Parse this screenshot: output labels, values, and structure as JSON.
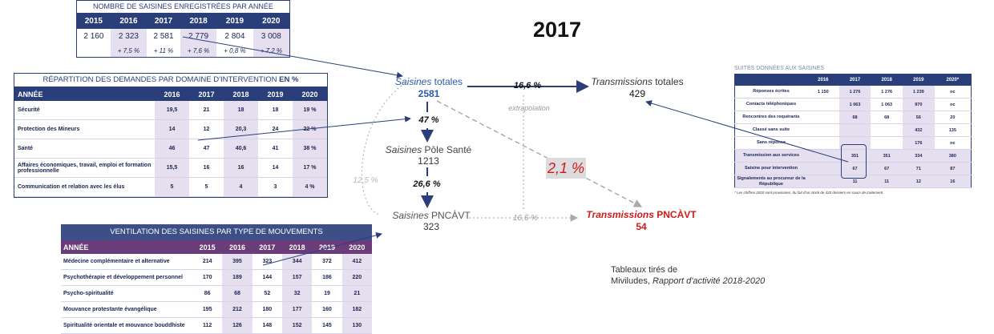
{
  "year": "2017",
  "table_counts": {
    "title": "NOMBRE DE SAISINES ENREGISTRÉES PAR ANNÉE",
    "headers": [
      "2015",
      "2016",
      "2017",
      "2018",
      "2019",
      "2020"
    ],
    "values": [
      "2 160",
      "2 323",
      "2 581",
      "2 779",
      "2 804",
      "3 008"
    ],
    "pcts": [
      "",
      "+ 7,5 %",
      "+ 11 %",
      "+ 7,6 %",
      "+ 0,8 %",
      "+ 7,2 %"
    ]
  },
  "table_domains": {
    "title_main": "RÉPARTITION DES DEMANDES PAR DOMAINE D'INTERVENTION",
    "title_bold": "EN %",
    "headers": [
      "ANNÉE",
      "2016",
      "2017",
      "2018",
      "2019",
      "2020"
    ],
    "rows": [
      {
        "label": "Sécurité",
        "cells": [
          "19,5",
          "21",
          "18",
          "18",
          "19 %"
        ]
      },
      {
        "label": "Protection des Mineurs",
        "cells": [
          "14",
          "12",
          "20,3",
          "24",
          "22 %"
        ]
      },
      {
        "label": "Santé",
        "cells": [
          "46",
          "47",
          "40,6",
          "41",
          "38 %"
        ]
      },
      {
        "label": "Affaires économiques, travail, emploi et formation professionnelle",
        "cells": [
          "15,5",
          "16",
          "16",
          "14",
          "17 %"
        ]
      },
      {
        "label": "Communication et relation avec les élus",
        "cells": [
          "5",
          "5",
          "4",
          "3",
          "4 %"
        ]
      }
    ]
  },
  "table_ventilation": {
    "title": "VENTILATION DES SAISINES PAR TYPE DE MOUVEMENTS",
    "headers": [
      "ANNÉE",
      "2015",
      "2016",
      "2017",
      "2018",
      "2019",
      "2020"
    ],
    "rows": [
      {
        "label": "Médecine complémentaire et alternative",
        "cells": [
          "214",
          "395",
          "323",
          "344",
          "372",
          "412"
        ]
      },
      {
        "label": "Psychothérapie et développement personnel",
        "cells": [
          "170",
          "189",
          "144",
          "157",
          "186",
          "220"
        ]
      },
      {
        "label": "Psycho-spiritualité",
        "cells": [
          "86",
          "68",
          "52",
          "32",
          "19",
          "21"
        ]
      },
      {
        "label": "Mouvance protestante évangélique",
        "cells": [
          "195",
          "212",
          "180",
          "177",
          "160",
          "182"
        ]
      },
      {
        "label": "Spiritualité orientale et mouvance bouddhiste",
        "cells": [
          "112",
          "126",
          "148",
          "152",
          "145",
          "130"
        ]
      }
    ]
  },
  "table_suites": {
    "title": "SUITES DONNÉES AUX SAISINES",
    "headers": [
      "",
      "2016",
      "2017",
      "2018",
      "2019",
      "2020*"
    ],
    "rows": [
      {
        "label": "Réponses écrites",
        "cells": [
          "1 150",
          "1 276",
          "1 276",
          "1 239",
          "nc"
        ]
      },
      {
        "label": "Contacts téléphoniques",
        "cells": [
          "",
          "1 063",
          "1 063",
          "970",
          "nc"
        ]
      },
      {
        "label": "Rencontres des requérants",
        "cells": [
          "",
          "68",
          "68",
          "56",
          "20"
        ]
      },
      {
        "label": "Classé sans suite",
        "cells": [
          "",
          "",
          "",
          "432",
          "135"
        ]
      },
      {
        "label": "Sans réponse",
        "cells": [
          "",
          "",
          "",
          "176",
          "nc"
        ]
      },
      {
        "label": "Transmission aux services",
        "cells": [
          "",
          "351",
          "351",
          "334",
          "380"
        ]
      },
      {
        "label": "Saisine pour intervention",
        "cells": [
          "",
          "67",
          "67",
          "71",
          "87"
        ]
      },
      {
        "label": "Signalements au procureur de la République",
        "cells": [
          "",
          "11",
          "11",
          "12",
          "16"
        ]
      }
    ],
    "note": "* Les chiffres 2020 sont provisoires, du fait d'un stock de 420 dossiers en cours de traitement."
  },
  "flow": {
    "saisines_label_it": "Saisines",
    "saisines_label": " totales",
    "saisines_value": "2581",
    "transmissions_label_it": "Transmissions",
    "transmissions_label": " totales",
    "transmissions_value": "429",
    "pct_trans_totales": "16,6 %",
    "extrapolation": "extrapolation",
    "pct_sante": "47 %",
    "sante_label_it": "Saisines",
    "sante_label": " Pôle Santé",
    "sante_value": "1213",
    "pct_pnc": "26,6 %",
    "pct_global_pnc": "12,5 %",
    "pct_trans_pnc_global": "2,1 %",
    "pnc_label_it": "Saisines",
    "pnc_label": " PNCÀVT",
    "pnc_value": "323",
    "pct_trans_pnc": "16,6 %",
    "tpnc_label_it": "Transmissions",
    "tpnc_label": " PNCÀVT",
    "tpnc_value": "54"
  },
  "source": {
    "line1": "Tableaux tirés de",
    "line2_plain": "Miviludes, ",
    "line2_it": "Rapport d'activité 2018-2020"
  },
  "colors": {
    "navy": "#2a3f7a",
    "purple": "#6a3d7a",
    "lavender": "#e5dff0",
    "red": "#d01a1a",
    "blue_text": "#2a5aa8"
  }
}
